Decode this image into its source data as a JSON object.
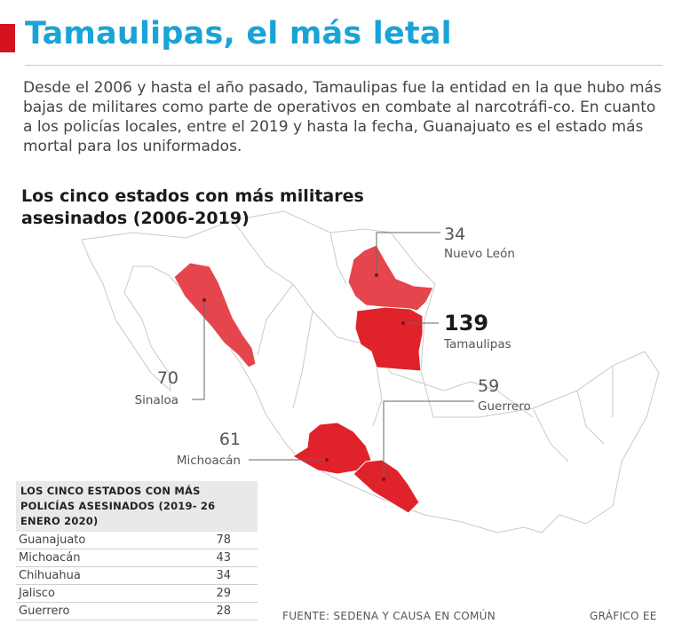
{
  "header": {
    "title": "Tamaulipas, el más letal",
    "intro": "Desde el 2006 y hasta el año pasado, Tamaulipas fue la entidad en la que hubo más bajas de militares como parte de operativos en combate al narcotráfi-co. En cuanto a los policías locales, entre el 2019 y hasta la fecha, Guanajuato es el estado más mortal para los uniformados.",
    "accent_color": "#d3141f",
    "title_color": "#1aa3d6"
  },
  "map": {
    "heading": "Los cinco estados con más militares asesinados (2006-2019)",
    "highlight_color": "#e0232b",
    "states": [
      {
        "name": "Nuevo León",
        "value": "34"
      },
      {
        "name": "Tamaulipas",
        "value": "139"
      },
      {
        "name": "Sinaloa",
        "value": "70"
      },
      {
        "name": "Guerrero",
        "value": "59"
      },
      {
        "name": "Michoacán",
        "value": "61"
      }
    ]
  },
  "police_table": {
    "heading": "LOS CINCO ESTADOS CON MÁS POLICÍAS ASESINADOS (2019- 26 ENERO 2020)",
    "rows": [
      {
        "state": "Guanajuato",
        "value": "78"
      },
      {
        "state": "Michoacán",
        "value": "43"
      },
      {
        "state": "Chihuahua",
        "value": "34"
      },
      {
        "state": "Jalisco",
        "value": "29"
      },
      {
        "state": "Guerrero",
        "value": "28"
      }
    ]
  },
  "footer": {
    "source": "FUENTE: SEDENA Y CAUSA EN COMÚN",
    "credit": "GRÁFICO EE"
  }
}
